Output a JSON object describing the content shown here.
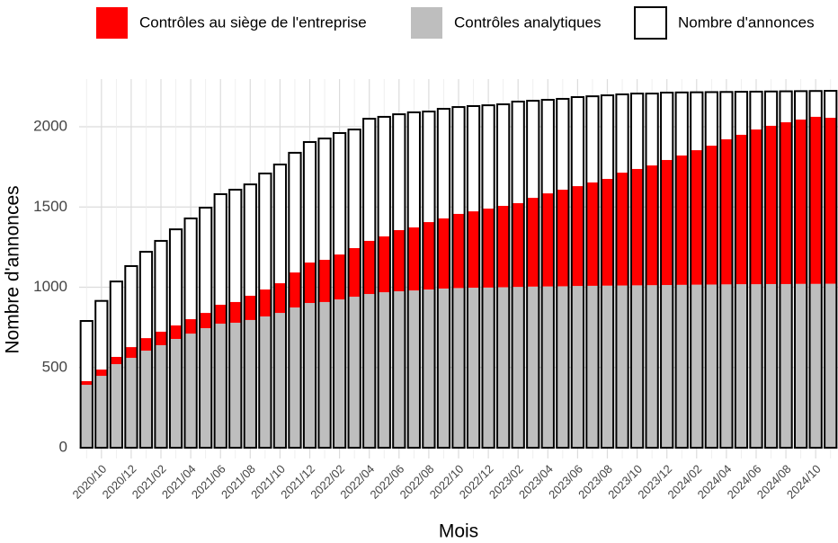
{
  "chart_data": {
    "type": "bar",
    "xlabel": "Mois",
    "ylabel": "Nombre d'annonces",
    "categories": [
      null,
      "2020/10",
      null,
      "2020/12",
      null,
      "2021/02",
      null,
      "2021/04",
      null,
      "2021/06",
      null,
      "2021/08",
      null,
      "2021/10",
      null,
      "2021/12",
      null,
      "2022/02",
      null,
      "2022/04",
      null,
      "2022/06",
      null,
      "2022/08",
      null,
      "2022/10",
      null,
      "2022/12",
      null,
      "2023/02",
      null,
      "2023/04",
      null,
      "2023/06",
      null,
      "2023/08",
      null,
      "2023/10",
      null,
      "2023/12",
      null,
      "2024/02",
      null,
      "2024/04",
      null,
      "2024/06",
      null,
      "2024/08",
      null,
      "2024/10",
      null
    ],
    "series": [
      {
        "name": "Contrôles au siège de l'entreprise",
        "color": "#ff0000",
        "values": [
          23,
          39,
          45,
          67,
          78,
          84,
          84,
          90,
          95,
          118,
          129,
          151,
          168,
          185,
          218,
          252,
          263,
          280,
          303,
          331,
          348,
          381,
          393,
          420,
          437,
          462,
          476,
          492,
          507,
          522,
          553,
          580,
          602,
          622,
          644,
          665,
          703,
          725,
          746,
          779,
          806,
          838,
          865,
          904,
          931,
          964,
          986,
          1008,
          1024,
          1041,
          1034
        ]
      },
      {
        "name": "Contrôles analytiques",
        "color": "#bebebe",
        "values": [
          392,
          448,
          521,
          560,
          605,
          639,
          678,
          711,
          745,
          773,
          779,
          796,
          818,
          840,
          874,
          902,
          908,
          924,
          941,
          958,
          969,
          975,
          980,
          986,
          992,
          995,
          997,
          998,
          1000,
          1002,
          1004,
          1005,
          1006,
          1008,
          1009,
          1010,
          1011,
          1012,
          1013,
          1014,
          1015,
          1016,
          1017,
          1018,
          1019,
          1019,
          1020,
          1020,
          1021,
          1021,
          1022
        ]
      },
      {
        "name": "Nombre d'annonces",
        "color": "#ffffff",
        "values": [
          790,
          915,
          1036,
          1132,
          1221,
          1289,
          1361,
          1429,
          1496,
          1580,
          1608,
          1641,
          1709,
          1765,
          1838,
          1905,
          1927,
          1961,
          1983,
          2050,
          2062,
          2078,
          2090,
          2095,
          2112,
          2123,
          2129,
          2134,
          2140,
          2157,
          2162,
          2168,
          2174,
          2185,
          2190,
          2196,
          2202,
          2207,
          2207,
          2213,
          2214,
          2215,
          2216,
          2217,
          2218,
          2219,
          2220,
          2221,
          2222,
          2223,
          2224
        ]
      }
    ],
    "ylim": [
      -67,
      2297
    ],
    "yticks": [
      0,
      500,
      1000,
      1500,
      2000
    ],
    "grid": true,
    "legend": "top"
  }
}
